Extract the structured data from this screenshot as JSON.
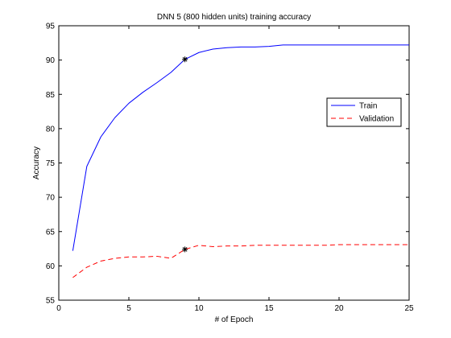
{
  "chart_data": {
    "type": "line",
    "title": "DNN 5 (800 hidden units) training accuracy",
    "xlabel": "# of Epoch",
    "ylabel": "Accuracy",
    "xlim": [
      0,
      25
    ],
    "ylim": [
      55,
      95
    ],
    "xticks": [
      0,
      5,
      10,
      15,
      20,
      25
    ],
    "yticks": [
      55,
      60,
      65,
      70,
      75,
      80,
      85,
      90,
      95
    ],
    "grid": false,
    "legend_position": "right",
    "series": [
      {
        "name": "Train",
        "color": "#0000ff",
        "style": "solid",
        "x": [
          1,
          2,
          3,
          4,
          5,
          6,
          7,
          8,
          9,
          10,
          11,
          12,
          13,
          14,
          15,
          16,
          17,
          18,
          19,
          20,
          21,
          22,
          23,
          24,
          25
        ],
        "y": [
          62.2,
          74.5,
          78.8,
          81.6,
          83.7,
          85.3,
          86.7,
          88.2,
          90.1,
          91.1,
          91.6,
          91.8,
          91.9,
          91.9,
          92.0,
          92.2,
          92.2,
          92.2,
          92.2,
          92.2,
          92.2,
          92.2,
          92.2,
          92.2,
          92.2
        ]
      },
      {
        "name": "Validation",
        "color": "#ff0000",
        "style": "dashed",
        "x": [
          1,
          2,
          3,
          4,
          5,
          6,
          7,
          8,
          9,
          10,
          11,
          12,
          13,
          14,
          15,
          16,
          17,
          18,
          19,
          20,
          21,
          22,
          23,
          24,
          25
        ],
        "y": [
          58.3,
          59.8,
          60.7,
          61.1,
          61.3,
          61.3,
          61.4,
          61.1,
          62.4,
          63.0,
          62.8,
          62.9,
          62.9,
          63.0,
          63.0,
          63.0,
          63.0,
          63.0,
          63.0,
          63.1,
          63.1,
          63.1,
          63.1,
          63.1,
          63.1
        ]
      }
    ],
    "markers": [
      {
        "series": "Train",
        "x": 9,
        "y": 90.1,
        "symbol": "*"
      },
      {
        "series": "Validation",
        "x": 9,
        "y": 62.4,
        "symbol": "*"
      }
    ]
  }
}
